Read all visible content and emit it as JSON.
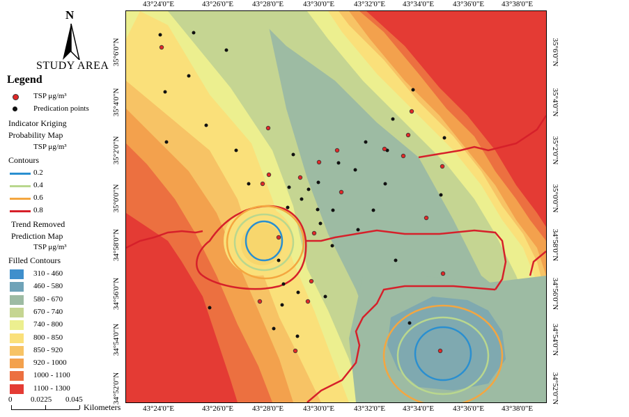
{
  "north": {
    "letter": "N",
    "label": "STUDY AREA"
  },
  "legend": {
    "title": "Legend",
    "points": [
      {
        "label": "TSP μg/m³",
        "color": "#e02828"
      },
      {
        "label": "Predication points",
        "color": "#111111"
      }
    ],
    "ik_title_1": "Indicator Kriging",
    "ik_title_2": "Probability Map",
    "ik_unit": "TSP μg/m³",
    "contours_title": "Contours",
    "contours": [
      {
        "label": "0.2",
        "color": "#2a8fd0"
      },
      {
        "label": "0.4",
        "color": "#b9d78e"
      },
      {
        "label": "0.6",
        "color": "#f4a640"
      },
      {
        "label": "0.8",
        "color": "#d6202a"
      }
    ],
    "trend_title_1": "Trend Removed",
    "trend_title_2": "Prediction Map",
    "trend_unit": "TSP μg/m³",
    "filled_title": "Filled Contours",
    "filled": [
      {
        "label": "310 - 460",
        "color": "#3f8fcc"
      },
      {
        "label": "460 - 580",
        "color": "#6fa3b8"
      },
      {
        "label": "580 - 670",
        "color": "#9dbba3"
      },
      {
        "label": "670 - 740",
        "color": "#c5d592"
      },
      {
        "label": "740 - 800",
        "color": "#ecef8f"
      },
      {
        "label": "800 - 850",
        "color": "#fae07a"
      },
      {
        "label": "850 - 920",
        "color": "#f7c365"
      },
      {
        "label": "920 - 1000",
        "color": "#f3a14d"
      },
      {
        "label": "1000 - 1100",
        "color": "#ec7040"
      },
      {
        "label": "1100 - 1300",
        "color": "#e43b34"
      }
    ]
  },
  "scale": {
    "ticks": [
      "0",
      "0.0225",
      "0.045"
    ],
    "unit": "Kilometers"
  },
  "axes": {
    "top": [
      "43°24'0\"E",
      "43°26'0\"E",
      "43°28'0\"E",
      "43°30'0\"E",
      "43°32'0\"E",
      "43°34'0\"E",
      "43°36'0\"E",
      "43°38'0\"E"
    ],
    "bottom": [
      "43°24'0\"E",
      "43°26'0\"E",
      "43°28'0\"E",
      "43°30'0\"E",
      "43°32'0\"E",
      "43°34'0\"E",
      "43°36'0\"E",
      "43°38'0\"E"
    ],
    "left": [
      "35°6'0\"N",
      "35°4'0\"N",
      "35°2'0\"N",
      "35°0'0\"N",
      "34°58'0\"N",
      "34°56'0\"N",
      "34°54'0\"N",
      "34°52'0\"N"
    ],
    "right": [
      "35°6'0\"N",
      "35°4'0\"N",
      "35°2'0\"N",
      "35°0'0\"N",
      "34°58'0\"N",
      "34°56'0\"N",
      "34°54'0\"N",
      "34°52'0\"N"
    ]
  }
}
